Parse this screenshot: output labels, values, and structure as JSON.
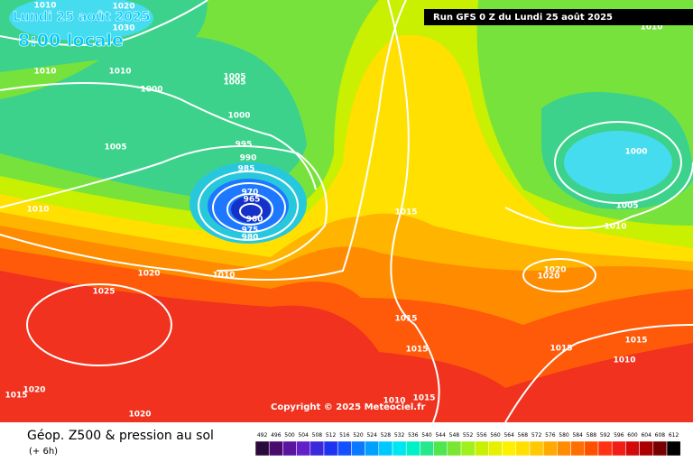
{
  "header": {
    "date": "Lundi 25 août 2025",
    "time": "8:00 locale"
  },
  "run_label": "Run GFS 0 Z du Lundi 25 août 2025",
  "copyright": "Copyright © 2025 Meteociel.fr",
  "legend": {
    "title": "Géop. Z500 & pression au sol",
    "subtitle": "(+ 6h)",
    "scale": [
      492,
      496,
      500,
      504,
      508,
      512,
      516,
      520,
      524,
      528,
      532,
      536,
      540,
      544,
      548,
      552,
      556,
      560,
      564,
      568,
      572,
      576,
      580,
      584,
      588,
      592,
      596,
      600,
      604,
      608,
      612
    ]
  },
  "isobar_labels": [
    "1010",
    "1020",
    "1030",
    "1010",
    "1010",
    "1000",
    "1005",
    "1005",
    "1000",
    "1005",
    "995",
    "990",
    "985",
    "970",
    "965",
    "960",
    "975",
    "980",
    "1010",
    "1015",
    "1020",
    "1010",
    "1025",
    "1015",
    "1015",
    "1020",
    "1015",
    "1020",
    "1010",
    "1015",
    "1015",
    "1015",
    "1010",
    "1000",
    "1005",
    "1010",
    "1020",
    "1020",
    "1010"
  ]
}
